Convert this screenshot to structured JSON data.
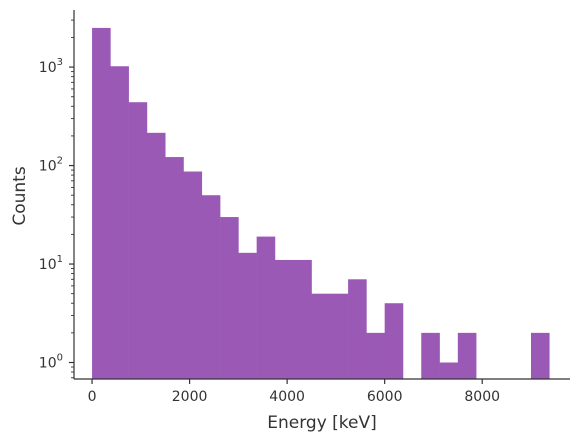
{
  "chart_data": {
    "type": "bar",
    "subtype": "histogram",
    "title": "",
    "xlabel": "Energy [keV]",
    "ylabel": "Counts",
    "y_scale": "log",
    "x_range": [
      -370,
      9800
    ],
    "y_range": [
      0.68,
      3800
    ],
    "grid": false,
    "legend": "none",
    "bar_color": "#9b59b6",
    "axis_color": "#333333",
    "x_ticks": [
      {
        "value": 0,
        "label": "0"
      },
      {
        "value": 2000,
        "label": "2000"
      },
      {
        "value": 4000,
        "label": "4000"
      },
      {
        "value": 6000,
        "label": "6000"
      },
      {
        "value": 8000,
        "label": "8000"
      }
    ],
    "y_ticks": [
      {
        "value": 1,
        "base": "10",
        "exp": "0"
      },
      {
        "value": 10,
        "base": "10",
        "exp": "1"
      },
      {
        "value": 100,
        "base": "10",
        "exp": "2"
      },
      {
        "value": 1000,
        "base": "10",
        "exp": "3"
      }
    ],
    "bins": [
      {
        "x0": 0,
        "x1": 375,
        "count": 2500
      },
      {
        "x0": 375,
        "x1": 750,
        "count": 1020
      },
      {
        "x0": 750,
        "x1": 1125,
        "count": 440
      },
      {
        "x0": 1125,
        "x1": 1500,
        "count": 215
      },
      {
        "x0": 1500,
        "x1": 1875,
        "count": 122
      },
      {
        "x0": 1875,
        "x1": 2250,
        "count": 87
      },
      {
        "x0": 2250,
        "x1": 2625,
        "count": 50
      },
      {
        "x0": 2625,
        "x1": 3000,
        "count": 30
      },
      {
        "x0": 3000,
        "x1": 3375,
        "count": 13
      },
      {
        "x0": 3375,
        "x1": 3750,
        "count": 19
      },
      {
        "x0": 3750,
        "x1": 4125,
        "count": 11
      },
      {
        "x0": 4125,
        "x1": 4500,
        "count": 11
      },
      {
        "x0": 4500,
        "x1": 4875,
        "count": 5
      },
      {
        "x0": 4875,
        "x1": 5250,
        "count": 5
      },
      {
        "x0": 5250,
        "x1": 5625,
        "count": 7
      },
      {
        "x0": 5625,
        "x1": 6000,
        "count": 2
      },
      {
        "x0": 6000,
        "x1": 6375,
        "count": 4
      },
      {
        "x0": 6375,
        "x1": 6750,
        "count": 0
      },
      {
        "x0": 6750,
        "x1": 7125,
        "count": 2
      },
      {
        "x0": 7125,
        "x1": 7500,
        "count": 1
      },
      {
        "x0": 7500,
        "x1": 7875,
        "count": 2
      },
      {
        "x0": 7875,
        "x1": 8250,
        "count": 0
      },
      {
        "x0": 8250,
        "x1": 8625,
        "count": 0
      },
      {
        "x0": 8625,
        "x1": 9000,
        "count": 0
      },
      {
        "x0": 9000,
        "x1": 9375,
        "count": 2
      }
    ]
  }
}
